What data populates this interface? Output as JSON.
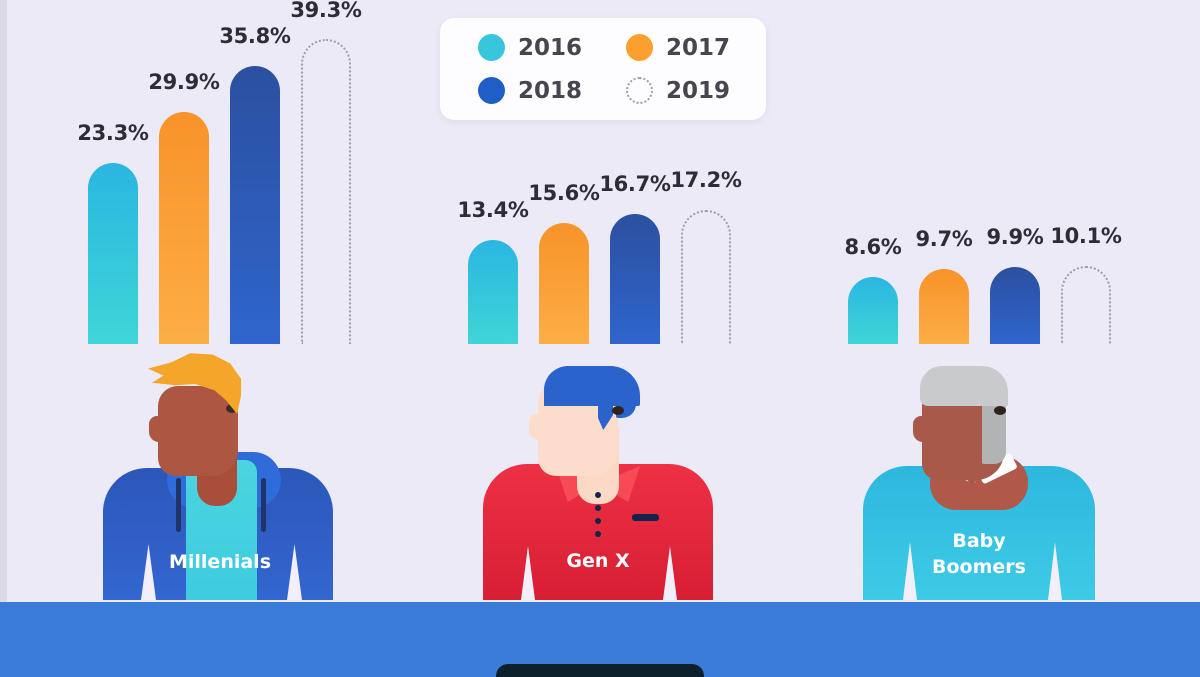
{
  "chart_data": {
    "type": "bar",
    "categories": [
      "Millenials",
      "Gen X",
      "Baby Boomers"
    ],
    "series": [
      {
        "name": "2016",
        "values": [
          23.3,
          13.4,
          8.6
        ],
        "color": "#38c6dc",
        "gradient": [
          "#2ab6e1",
          "#3fd5d7"
        ],
        "dotted": false
      },
      {
        "name": "2017",
        "values": [
          29.9,
          15.6,
          9.7
        ],
        "color": "#f9a02e",
        "gradient": [
          "#f8932a",
          "#fcae45"
        ],
        "dotted": false
      },
      {
        "name": "2018",
        "values": [
          35.8,
          16.7,
          9.9
        ],
        "color": "#1f5ec6",
        "gradient": [
          "#2b509f",
          "#2f65cd"
        ],
        "dotted": false
      },
      {
        "name": "2019",
        "values": [
          39.3,
          17.2,
          10.1
        ],
        "color": "#9aa0ac",
        "gradient": null,
        "dotted": true
      }
    ],
    "value_suffix": "%",
    "value_labels": true,
    "legend_position": "top-center",
    "ylim": [
      0,
      40
    ],
    "grid": false,
    "axes_visible": false
  },
  "scene": {
    "background_color": "#edeaf7",
    "desk_color": "#3b7cd8",
    "laptop_color": "#0c212b"
  }
}
